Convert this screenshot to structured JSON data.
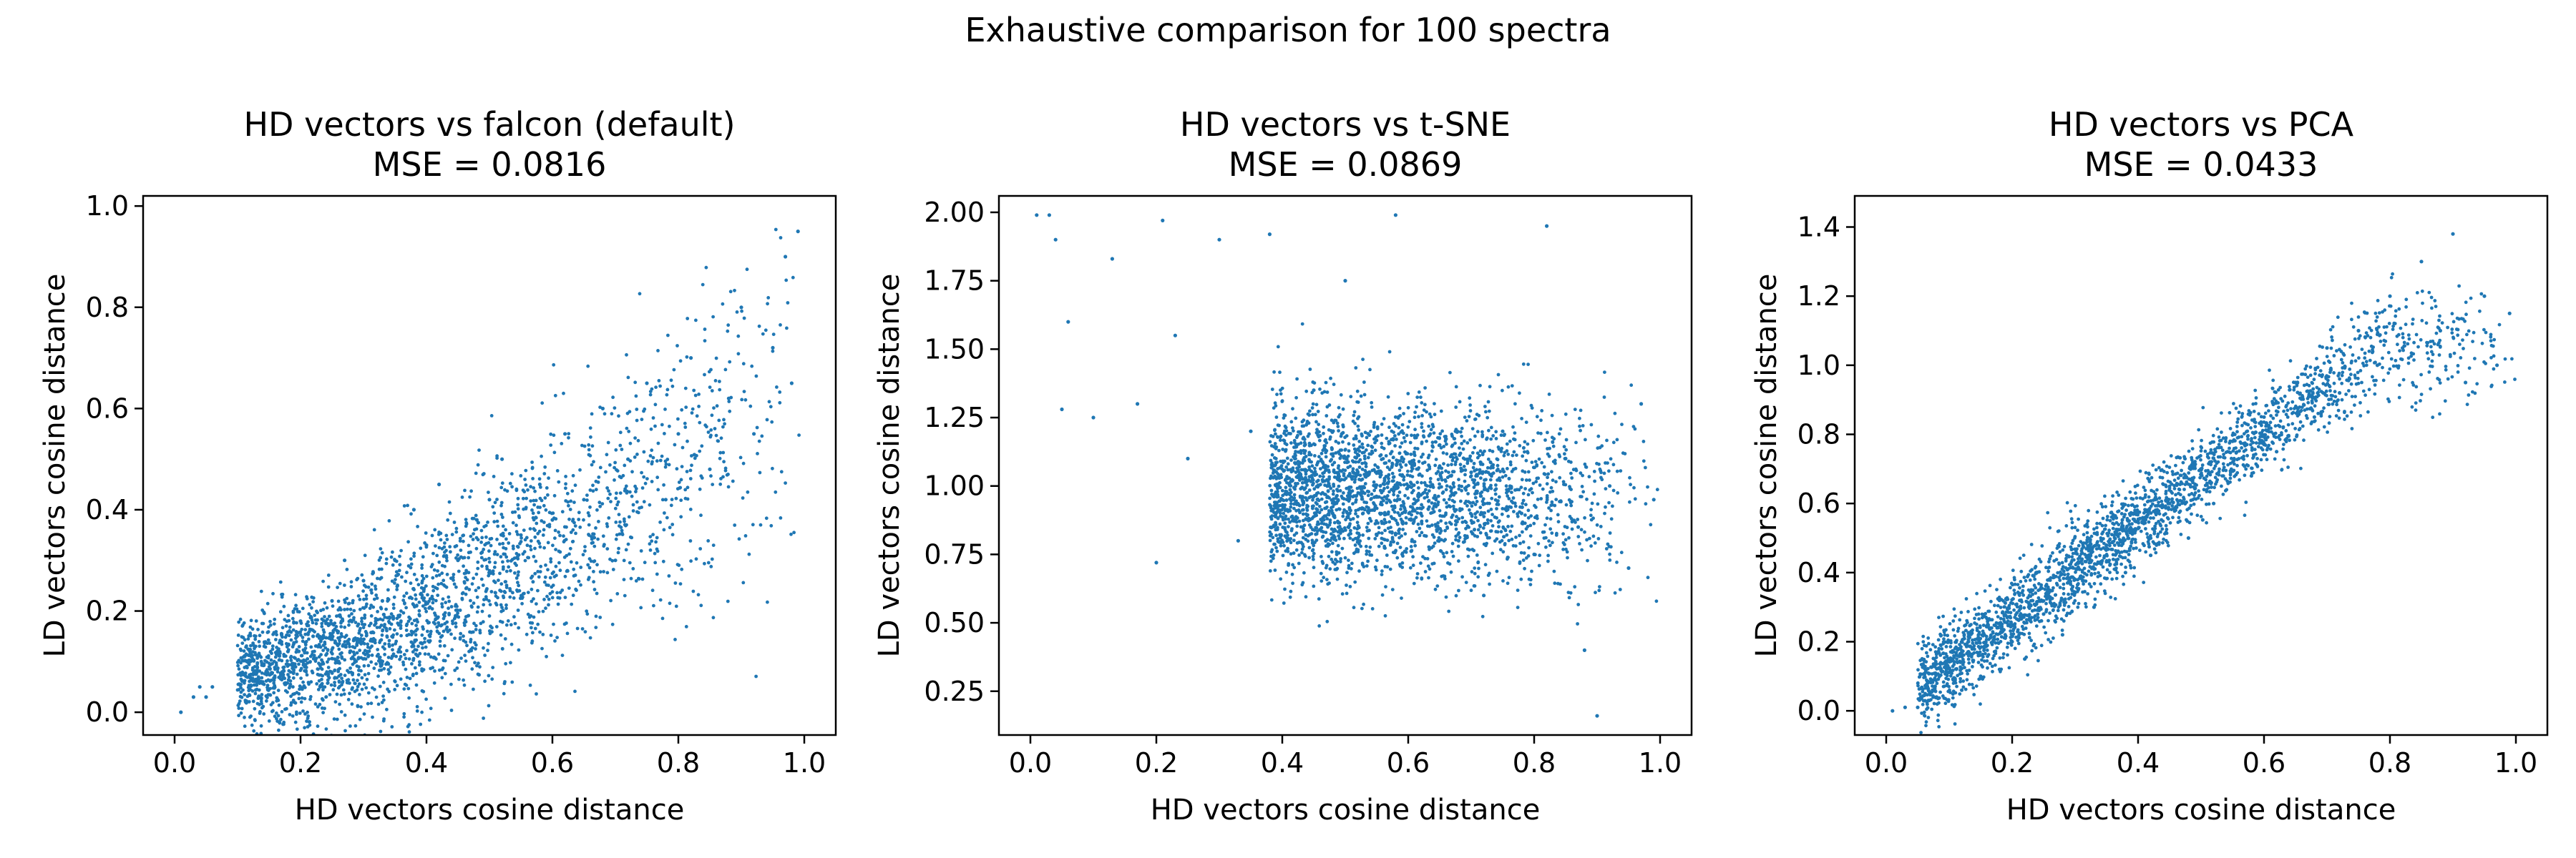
{
  "suptitle": "Exhaustive comparison for 100 spectra",
  "chart_data": [
    {
      "type": "scatter",
      "title_line1": "HD vectors vs falcon (default)",
      "title_line2": "MSE = 0.0816",
      "xlabel": "HD vectors cosine distance",
      "ylabel": "LD vectors cosine distance",
      "xlim": [
        -0.05,
        1.05
      ],
      "ylim": [
        -0.045,
        1.02
      ],
      "xticks": [
        0.0,
        0.2,
        0.4,
        0.6,
        0.8,
        1.0
      ],
      "xtick_labels": [
        "0.0",
        "0.2",
        "0.4",
        "0.6",
        "0.8",
        "1.0"
      ],
      "yticks": [
        0.0,
        0.2,
        0.4,
        0.6,
        0.8,
        1.0
      ],
      "ytick_labels": [
        "0.0",
        "0.2",
        "0.4",
        "0.6",
        "0.8",
        "1.0"
      ],
      "grid": false,
      "color": "#1f77b4",
      "points": [
        [
          0.01,
          0.0
        ],
        [
          0.03,
          0.03
        ],
        [
          0.04,
          0.05
        ],
        [
          0.05,
          0.03
        ],
        [
          0.06,
          0.05
        ],
        [
          0.12,
          0.1
        ],
        [
          0.14,
          0.06
        ],
        [
          0.18,
          0.12
        ],
        [
          0.2,
          0.18
        ],
        [
          0.22,
          0.15
        ],
        [
          0.25,
          0.22
        ],
        [
          0.27,
          0.3
        ],
        [
          0.3,
          0.26
        ],
        [
          0.33,
          0.22
        ],
        [
          0.35,
          0.3
        ],
        [
          0.38,
          0.4
        ],
        [
          0.4,
          0.33
        ],
        [
          0.42,
          0.45
        ],
        [
          0.45,
          0.3
        ],
        [
          0.48,
          0.38
        ],
        [
          0.5,
          0.42
        ],
        [
          0.52,
          0.5
        ],
        [
          0.55,
          0.35
        ],
        [
          0.58,
          0.45
        ],
        [
          0.6,
          0.38
        ],
        [
          0.62,
          0.55
        ],
        [
          0.65,
          0.42
        ],
        [
          0.68,
          0.6
        ],
        [
          0.7,
          0.3
        ],
        [
          0.72,
          0.5
        ],
        [
          0.75,
          0.65
        ],
        [
          0.78,
          0.42
        ],
        [
          0.8,
          0.55
        ],
        [
          0.82,
          0.7
        ],
        [
          0.85,
          0.48
        ],
        [
          0.88,
          0.62
        ],
        [
          0.9,
          0.8
        ],
        [
          0.92,
          0.55
        ],
        [
          0.95,
          0.72
        ],
        [
          0.97,
          0.9
        ],
        [
          0.98,
          0.65
        ],
        [
          0.99,
          0.95
        ]
      ]
    },
    {
      "type": "scatter",
      "title_line1": "HD vectors vs t-SNE",
      "title_line2": "MSE = 0.0869",
      "xlabel": "HD vectors cosine distance",
      "ylabel": "LD vectors cosine distance",
      "xlim": [
        -0.05,
        1.05
      ],
      "ylim": [
        0.09,
        2.06
      ],
      "xticks": [
        0.0,
        0.2,
        0.4,
        0.6,
        0.8,
        1.0
      ],
      "xtick_labels": [
        "0.0",
        "0.2",
        "0.4",
        "0.6",
        "0.8",
        "1.0"
      ],
      "yticks": [
        0.25,
        0.5,
        0.75,
        1.0,
        1.25,
        1.5,
        1.75,
        2.0
      ],
      "ytick_labels": [
        "0.25",
        "0.50",
        "0.75",
        "1.00",
        "1.25",
        "1.50",
        "1.75",
        "2.00"
      ],
      "grid": false,
      "color": "#1f77b4",
      "points": [
        [
          0.01,
          1.99
        ],
        [
          0.03,
          1.99
        ],
        [
          0.04,
          1.9
        ],
        [
          0.05,
          1.28
        ],
        [
          0.06,
          1.6
        ],
        [
          0.1,
          1.25
        ],
        [
          0.13,
          1.83
        ],
        [
          0.17,
          1.3
        ],
        [
          0.2,
          0.72
        ],
        [
          0.21,
          1.97
        ],
        [
          0.23,
          1.55
        ],
        [
          0.25,
          1.1
        ],
        [
          0.3,
          1.9
        ],
        [
          0.33,
          0.8
        ],
        [
          0.35,
          1.2
        ],
        [
          0.38,
          1.92
        ],
        [
          0.4,
          0.95
        ],
        [
          0.42,
          1.1
        ],
        [
          0.45,
          1.35
        ],
        [
          0.48,
          0.9
        ],
        [
          0.5,
          1.75
        ],
        [
          0.52,
          1.05
        ],
        [
          0.55,
          0.82
        ],
        [
          0.58,
          1.99
        ],
        [
          0.6,
          1.0
        ],
        [
          0.62,
          0.9
        ],
        [
          0.65,
          1.15
        ],
        [
          0.68,
          0.8
        ],
        [
          0.7,
          1.05
        ],
        [
          0.72,
          0.6
        ],
        [
          0.75,
          1.2
        ],
        [
          0.78,
          0.9
        ],
        [
          0.8,
          0.75
        ],
        [
          0.82,
          1.95
        ],
        [
          0.85,
          1.1
        ],
        [
          0.87,
          0.85
        ],
        [
          0.88,
          0.4
        ],
        [
          0.9,
          0.16
        ],
        [
          0.92,
          1.0
        ],
        [
          0.95,
          0.7
        ],
        [
          0.97,
          1.3
        ],
        [
          0.99,
          0.95
        ]
      ]
    },
    {
      "type": "scatter",
      "title_line1": "HD vectors vs PCA",
      "title_line2": "MSE = 0.0433",
      "xlabel": "HD vectors cosine distance",
      "ylabel": "LD vectors cosine distance",
      "xlim": [
        -0.05,
        1.05
      ],
      "ylim": [
        -0.07,
        1.49
      ],
      "xticks": [
        0.0,
        0.2,
        0.4,
        0.6,
        0.8,
        1.0
      ],
      "xtick_labels": [
        "0.0",
        "0.2",
        "0.4",
        "0.6",
        "0.8",
        "1.0"
      ],
      "yticks": [
        0.0,
        0.2,
        0.4,
        0.6,
        0.8,
        1.0,
        1.2,
        1.4
      ],
      "ytick_labels": [
        "0.0",
        "0.2",
        "0.4",
        "0.6",
        "0.8",
        "1.0",
        "1.2",
        "1.4"
      ],
      "grid": false,
      "color": "#1f77b4",
      "points": [
        [
          0.01,
          0.0
        ],
        [
          0.03,
          0.01
        ],
        [
          0.05,
          0.01
        ],
        [
          0.08,
          0.04
        ],
        [
          0.12,
          0.06
        ],
        [
          0.15,
          0.1
        ],
        [
          0.18,
          0.12
        ],
        [
          0.2,
          0.2
        ],
        [
          0.22,
          0.15
        ],
        [
          0.25,
          0.28
        ],
        [
          0.28,
          0.22
        ],
        [
          0.3,
          0.38
        ],
        [
          0.33,
          0.3
        ],
        [
          0.35,
          0.45
        ],
        [
          0.38,
          0.4
        ],
        [
          0.4,
          0.55
        ],
        [
          0.42,
          0.45
        ],
        [
          0.45,
          0.6
        ],
        [
          0.48,
          0.5
        ],
        [
          0.5,
          0.7
        ],
        [
          0.52,
          0.6
        ],
        [
          0.55,
          0.78
        ],
        [
          0.58,
          0.68
        ],
        [
          0.6,
          0.85
        ],
        [
          0.62,
          0.75
        ],
        [
          0.65,
          0.95
        ],
        [
          0.68,
          0.85
        ],
        [
          0.7,
          1.05
        ],
        [
          0.72,
          0.92
        ],
        [
          0.75,
          1.1
        ],
        [
          0.78,
          1.0
        ],
        [
          0.8,
          1.2
        ],
        [
          0.82,
          1.05
        ],
        [
          0.85,
          1.3
        ],
        [
          0.88,
          1.1
        ],
        [
          0.9,
          1.38
        ],
        [
          0.92,
          0.95
        ],
        [
          0.95,
          1.2
        ],
        [
          0.97,
          1.0
        ],
        [
          0.99,
          1.15
        ]
      ]
    }
  ]
}
